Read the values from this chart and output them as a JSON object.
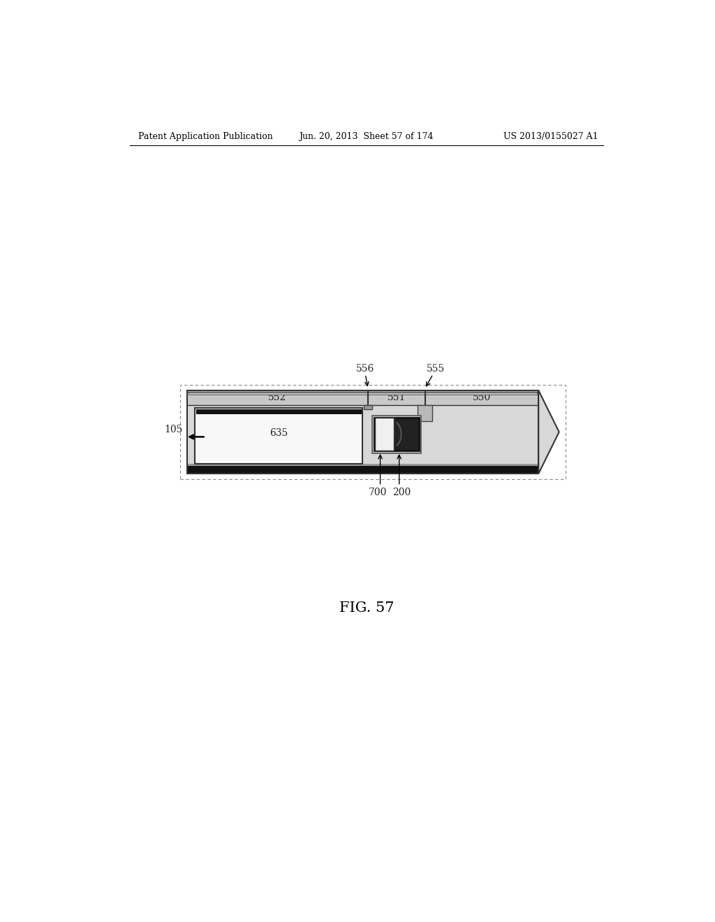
{
  "bg_color": "#ffffff",
  "fig_width": 10.24,
  "fig_height": 13.2,
  "header_left": "Patent Application Publication",
  "header_center": "Jun. 20, 2013  Sheet 57 of 174",
  "header_right": "US 2013/0155027 A1",
  "fig_caption": "FIG. 57",
  "line_color": "#333333",
  "gray_light": "#d8d8d8",
  "gray_mid": "#aaaaaa",
  "gray_dark": "#888888",
  "black": "#111111",
  "white": "#f8f8f8"
}
